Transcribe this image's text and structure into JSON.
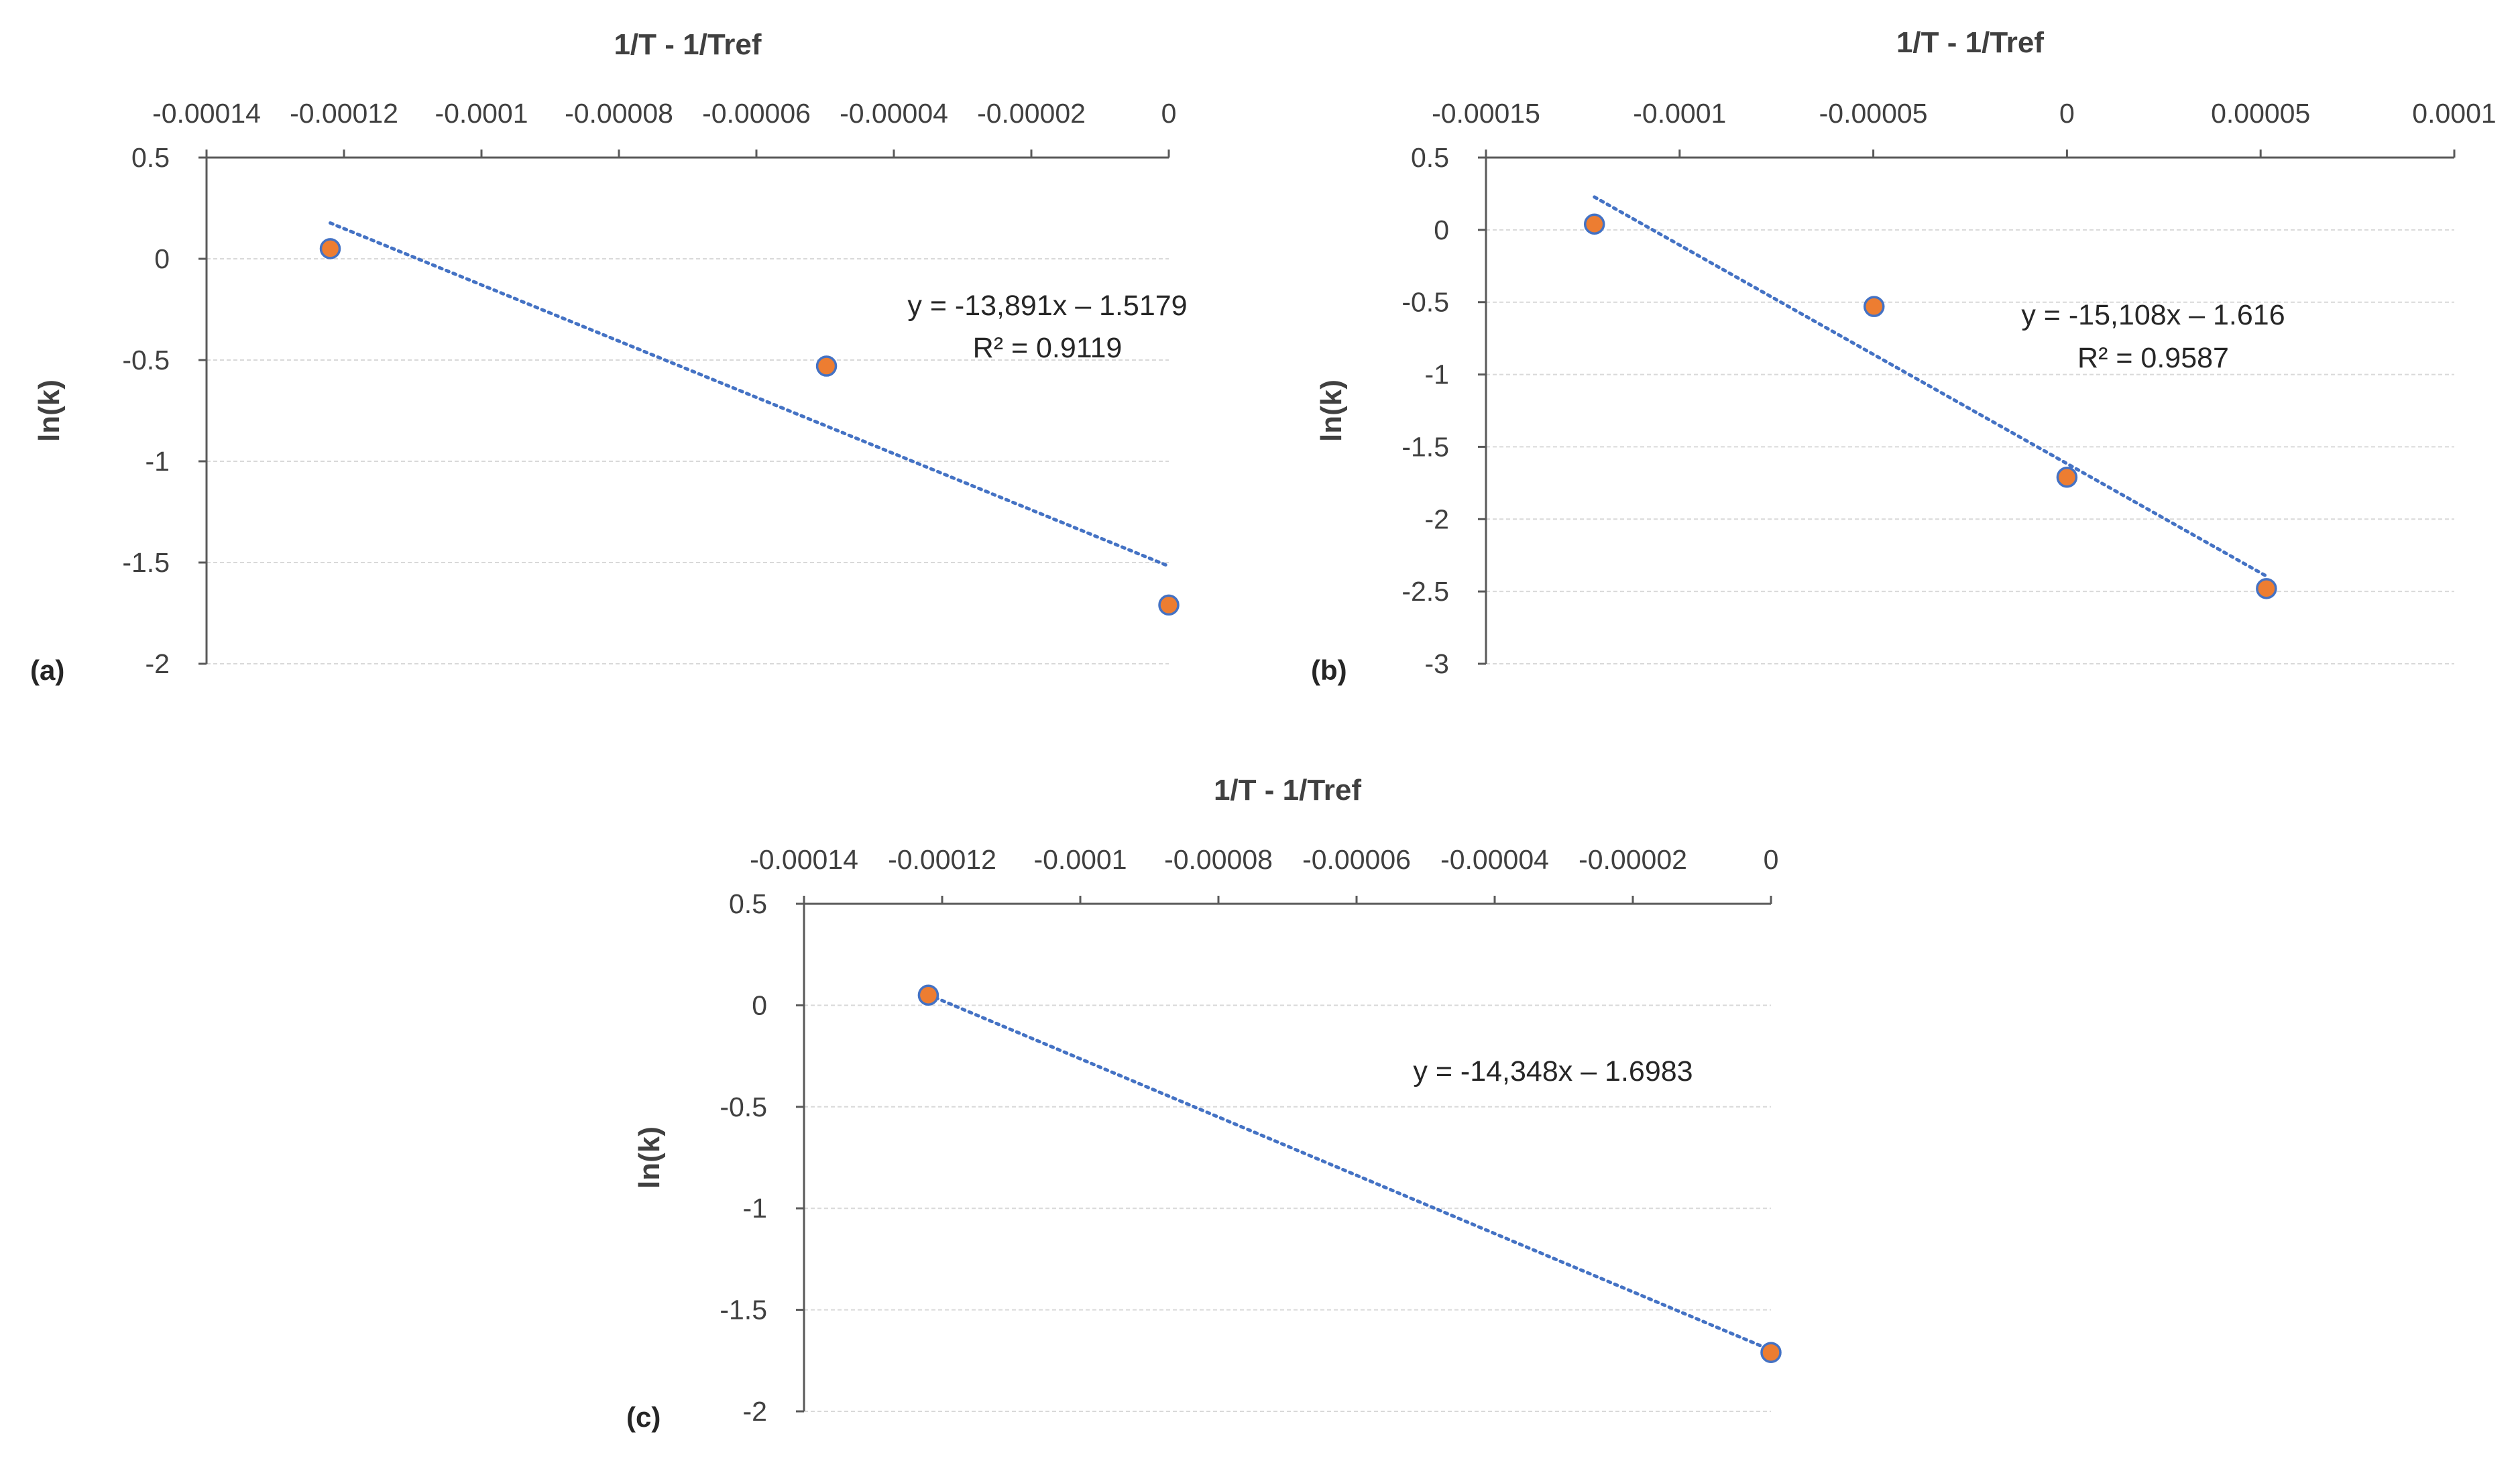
{
  "colors": {
    "marker_fill": "#ed7d31",
    "marker_stroke": "#4472c4",
    "trendline": "#4472c4",
    "gridline": "#d9d9d9",
    "axis": "#595959"
  },
  "chart_data": [
    {
      "type": "scatter",
      "panel_label": "(a)",
      "xlabel": "1/T - 1/Tref",
      "ylabel": "ln(k)",
      "xlim": [
        -0.00014,
        0
      ],
      "ylim": [
        -2,
        0.5
      ],
      "x_ticks": [
        -0.00014,
        -0.00012,
        -0.0001,
        -8e-05,
        -6e-05,
        -4e-05,
        -2e-05,
        0
      ],
      "x_tick_labels": [
        "-0.00014",
        "-0.00012",
        "-0.0001",
        "-0.00008",
        "-0.00006",
        "-0.00004",
        "-0.00002",
        "0"
      ],
      "y_ticks": [
        0.5,
        0,
        -0.5,
        -1,
        -1.5,
        -2
      ],
      "y_tick_labels": [
        "0.5",
        "0",
        "-0.5",
        "-1",
        "-1.5",
        "-2"
      ],
      "grid": true,
      "points": [
        {
          "x": -0.000122,
          "y": 0.05
        },
        {
          "x": -4.98e-05,
          "y": -0.53
        },
        {
          "x": 0,
          "y": -1.71
        }
      ],
      "trendline": {
        "slope": -13891,
        "intercept": -1.5179,
        "x_range": [
          -0.000122,
          0
        ]
      },
      "equation": "y = -13,891x – 1.5179",
      "r_squared": "R² = 0.9119"
    },
    {
      "type": "scatter",
      "panel_label": "(b)",
      "xlabel": "1/T - 1/Tref",
      "ylabel": "ln(k)",
      "xlim": [
        -0.00015,
        0.0001
      ],
      "ylim": [
        -3,
        0.5
      ],
      "x_ticks": [
        -0.00015,
        -0.0001,
        -5e-05,
        0,
        5e-05,
        0.0001
      ],
      "x_tick_labels": [
        "-0.00015",
        "-0.0001",
        "-0.00005",
        "0",
        "0.00005",
        "0.0001"
      ],
      "y_ticks": [
        0.5,
        0,
        -0.5,
        -1,
        -1.5,
        -2,
        -2.5,
        -3
      ],
      "y_tick_labels": [
        "0.5",
        "0",
        "-0.5",
        "-1",
        "-1.5",
        "-2",
        "-2.5",
        "-3"
      ],
      "grid": true,
      "points": [
        {
          "x": -0.000122,
          "y": 0.04
        },
        {
          "x": -4.98e-05,
          "y": -0.53
        },
        {
          "x": 0,
          "y": -1.71
        },
        {
          "x": 5.15e-05,
          "y": -2.48
        }
      ],
      "trendline": {
        "slope": -15108,
        "intercept": -1.616,
        "x_range": [
          -0.000122,
          5.15e-05
        ]
      },
      "equation": "y = -15,108x – 1.616",
      "r_squared": "R² = 0.9587"
    },
    {
      "type": "scatter",
      "panel_label": "(c)",
      "xlabel": "1/T - 1/Tref",
      "ylabel": "ln(k)",
      "xlim": [
        -0.00014,
        0
      ],
      "ylim": [
        -2,
        0.5
      ],
      "x_ticks": [
        -0.00014,
        -0.00012,
        -0.0001,
        -8e-05,
        -6e-05,
        -4e-05,
        -2e-05,
        0
      ],
      "x_tick_labels": [
        "-0.00014",
        "-0.00012",
        "-0.0001",
        "-0.00008",
        "-0.00006",
        "-0.00004",
        "-0.00002",
        "0"
      ],
      "y_ticks": [
        0.5,
        0,
        -0.5,
        -1,
        -1.5,
        -2
      ],
      "y_tick_labels": [
        "0.5",
        "0",
        "-0.5",
        "-1",
        "-1.5",
        "-2"
      ],
      "grid": true,
      "points": [
        {
          "x": -0.000122,
          "y": 0.05
        },
        {
          "x": 0,
          "y": -1.71
        }
      ],
      "trendline": {
        "slope": -14348,
        "intercept": -1.6983,
        "x_range": [
          -0.000122,
          0
        ]
      },
      "equation": "y = -14,348x – 1.6983",
      "r_squared": ""
    }
  ]
}
